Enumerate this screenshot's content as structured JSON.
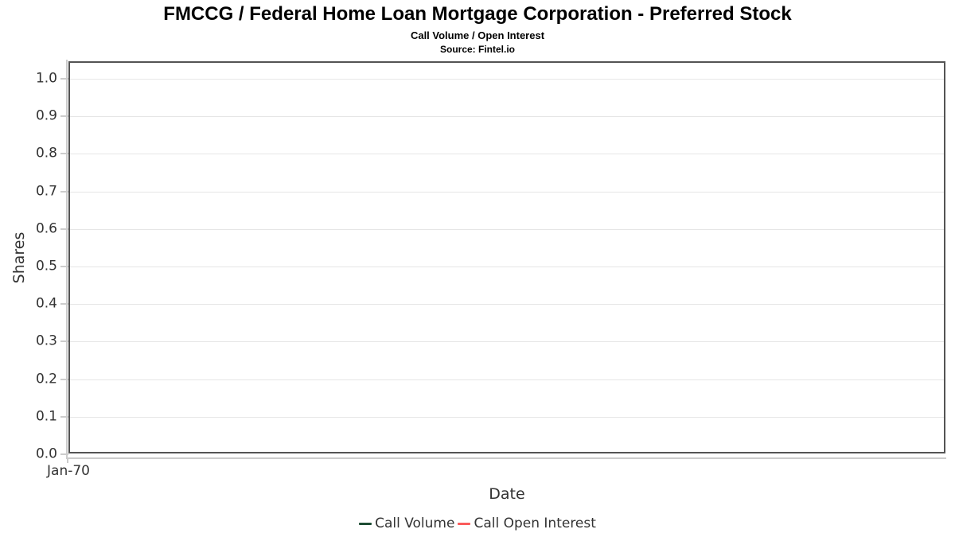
{
  "chart_data": {
    "type": "line",
    "title": "FMCCG / Federal Home Loan Mortgage Corporation - Preferred Stock",
    "subtitle": "Call Volume / Open Interest",
    "source": "Source: Fintel.io",
    "xlabel": "Date",
    "ylabel": "Shares",
    "x_ticks": [
      "Jan-70"
    ],
    "y_ticks": [
      "1.0",
      "0.9",
      "0.8",
      "0.7",
      "0.6",
      "0.5",
      "0.4",
      "0.3",
      "0.2",
      "0.1",
      "0.0"
    ],
    "ylim": [
      0.0,
      1.05
    ],
    "grid": true,
    "legend_position": "bottom",
    "series": [
      {
        "name": "Call Volume",
        "color": "#1e4d34",
        "x": [],
        "y": []
      },
      {
        "name": "Call Open Interest",
        "color": "#fa5c5c",
        "x": [],
        "y": []
      }
    ]
  },
  "colors": {
    "grid": "#e6e6e6",
    "plot_border": "#545454",
    "axis_line": "#cccccc",
    "text": "#333333",
    "title_text": "#000000"
  }
}
